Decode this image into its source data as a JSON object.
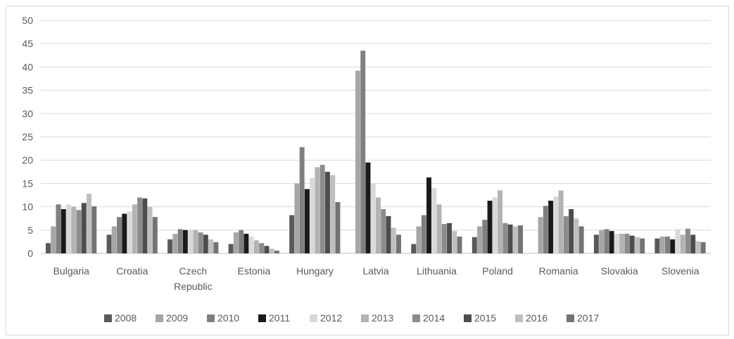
{
  "chart_data": {
    "type": "bar",
    "title": "",
    "xlabel": "",
    "ylabel": "",
    "ylim": [
      0,
      50
    ],
    "yticks": [
      0,
      5,
      10,
      15,
      20,
      25,
      30,
      35,
      40,
      45,
      50
    ],
    "grid": "horizontal",
    "legend": "bottom",
    "categories": [
      "Bulgaria",
      "Croatia",
      "Czech Republic",
      "Estonia",
      "Hungary",
      "Latvia",
      "Lithuania",
      "Poland",
      "Romania",
      "Slovakia",
      "Slovenia"
    ],
    "category_lines": [
      [
        "Bulgaria"
      ],
      [
        "Croatia"
      ],
      [
        "Czech",
        "Republic"
      ],
      [
        "Estonia"
      ],
      [
        "Hungary"
      ],
      [
        "Latvia"
      ],
      [
        "Lithuania"
      ],
      [
        "Poland"
      ],
      [
        "Romania"
      ],
      [
        "Slovakia"
      ],
      [
        "Slovenia"
      ]
    ],
    "series": [
      {
        "name": "2008",
        "color": "#595959",
        "values": [
          2.2,
          4.0,
          3.0,
          2.0,
          8.2,
          0,
          2.0,
          3.5,
          0,
          4.0,
          3.2
        ]
      },
      {
        "name": "2009",
        "color": "#a6a6a6",
        "values": [
          5.8,
          5.8,
          4.2,
          4.5,
          15.0,
          39.2,
          5.8,
          5.8,
          7.8,
          5.0,
          3.6
        ]
      },
      {
        "name": "2010",
        "color": "#7f7f7f",
        "values": [
          10.5,
          7.8,
          5.2,
          5.0,
          22.8,
          43.5,
          8.2,
          7.2,
          10.2,
          5.2,
          3.6
        ]
      },
      {
        "name": "2011",
        "color": "#1a1a1a",
        "values": [
          9.5,
          8.5,
          5.0,
          4.2,
          13.8,
          19.5,
          16.3,
          11.3,
          11.3,
          4.8,
          3.0
        ]
      },
      {
        "name": "2012",
        "color": "#d9d9d9",
        "values": [
          10.5,
          9.0,
          5.0,
          3.6,
          16.2,
          15.0,
          14.0,
          12.0,
          12.2,
          4.2,
          5.2
        ]
      },
      {
        "name": "2013",
        "color": "#b3b3b3",
        "values": [
          10.0,
          10.5,
          5.0,
          2.8,
          18.5,
          12.0,
          10.5,
          13.5,
          13.5,
          4.2,
          4.0
        ]
      },
      {
        "name": "2014",
        "color": "#8c8c8c",
        "values": [
          9.3,
          12.0,
          4.5,
          2.2,
          19.0,
          9.5,
          6.3,
          6.5,
          8.0,
          4.2,
          5.3
        ]
      },
      {
        "name": "2015",
        "color": "#4d4d4d",
        "values": [
          10.8,
          11.8,
          4.0,
          1.6,
          17.5,
          8.0,
          6.5,
          6.2,
          9.5,
          3.8,
          4.0
        ]
      },
      {
        "name": "2016",
        "color": "#bfbfbf",
        "values": [
          12.8,
          10.0,
          3.0,
          1.0,
          16.8,
          5.5,
          4.8,
          5.8,
          7.5,
          3.5,
          2.6
        ]
      },
      {
        "name": "2017",
        "color": "#737373",
        "values": [
          10.1,
          7.8,
          2.4,
          0.6,
          11.0,
          4.0,
          3.6,
          6.0,
          5.8,
          3.2,
          2.4
        ]
      }
    ]
  }
}
